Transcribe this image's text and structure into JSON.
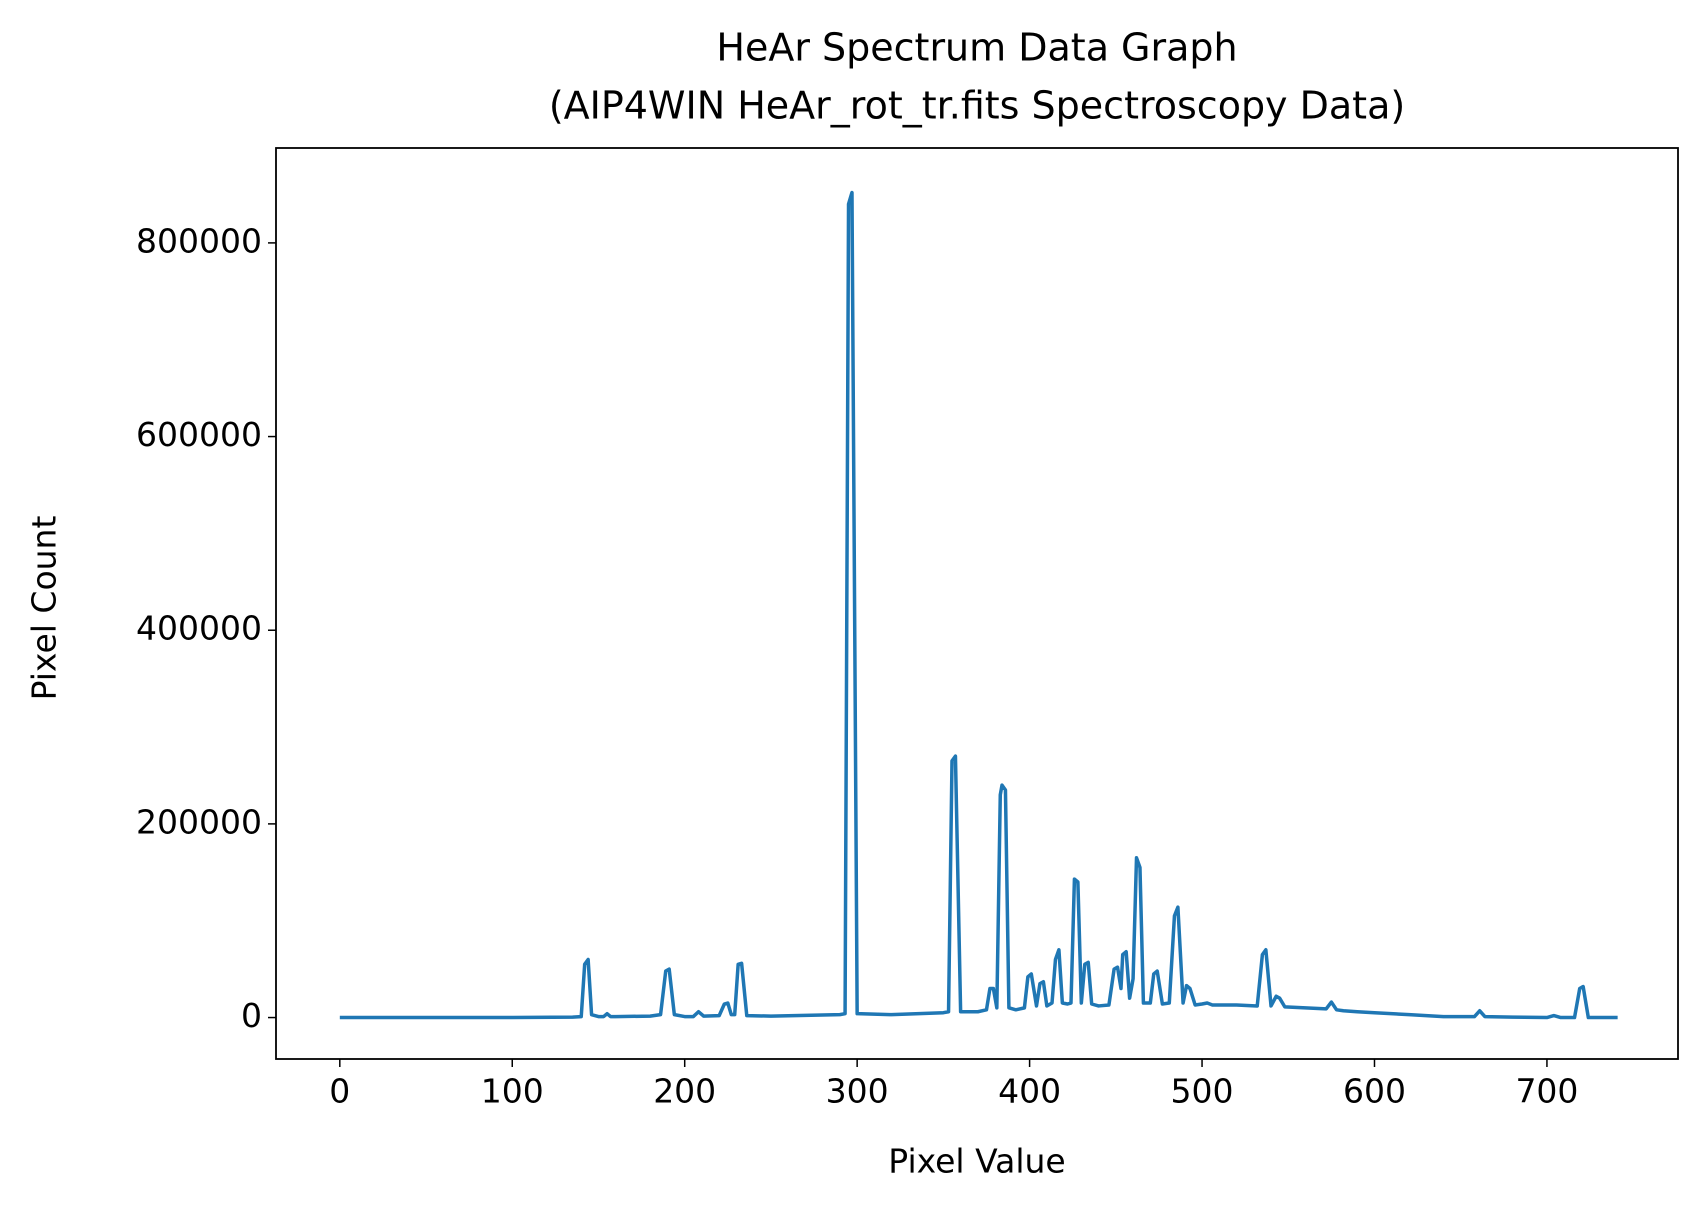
{
  "chart_data": {
    "type": "line",
    "title": "HeAr Spectrum Data Graph",
    "subtitle": "(AIP4WIN HeAr_rot_tr.fits Spectroscopy Data)",
    "x_label": "Pixel Value",
    "y_label": "Pixel Count",
    "xlim": [
      -37,
      776
    ],
    "ylim": [
      -42800,
      898000
    ],
    "xticks": [
      0,
      100,
      200,
      300,
      400,
      500,
      600,
      700
    ],
    "yticks": [
      0,
      200000,
      400000,
      600000,
      800000
    ],
    "grid": false,
    "series": [
      {
        "color": "#1f77b4",
        "x": [
          0,
          50,
          100,
          135,
          140,
          142,
          144,
          146,
          150,
          153,
          155,
          157,
          160,
          180,
          186,
          189,
          191,
          194,
          200,
          205,
          208,
          211,
          220,
          223,
          225,
          227,
          229,
          231,
          233,
          236,
          250,
          290,
          293,
          295,
          297,
          300,
          320,
          350,
          353,
          355,
          357,
          360,
          370,
          375,
          377,
          379,
          381,
          383,
          384,
          386,
          388,
          392,
          397,
          399,
          401,
          404,
          406,
          408,
          410,
          413,
          415,
          417,
          419,
          422,
          424,
          426,
          428,
          430,
          432,
          434,
          436,
          440,
          446,
          449,
          451,
          453,
          454,
          456,
          458,
          460,
          462,
          464,
          466,
          470,
          472,
          474,
          477,
          481,
          484,
          486,
          489,
          491,
          493,
          496,
          500,
          503,
          506,
          520,
          532,
          535,
          537,
          540,
          543,
          545,
          548,
          560,
          572,
          575,
          578,
          582,
          590,
          600,
          620,
          640,
          658,
          661,
          664,
          680,
          700,
          704,
          708,
          716,
          719,
          721,
          724,
          741
        ],
        "values": [
          0,
          0,
          0,
          500,
          1000,
          55000,
          60000,
          3000,
          1000,
          1000,
          4000,
          1000,
          1000,
          1500,
          3000,
          48000,
          50000,
          3000,
          1000,
          1000,
          6000,
          1500,
          2000,
          14000,
          15000,
          3000,
          3000,
          55000,
          56000,
          2000,
          1500,
          3000,
          4000,
          840000,
          852000,
          4000,
          3000,
          5000,
          6000,
          265000,
          270000,
          6000,
          6000,
          8000,
          30000,
          30000,
          10000,
          230000,
          240000,
          235000,
          10000,
          8000,
          10000,
          42000,
          45000,
          12000,
          35000,
          37000,
          12000,
          15000,
          60000,
          70000,
          15000,
          14000,
          15000,
          143000,
          140000,
          15000,
          55000,
          57000,
          14000,
          12000,
          13000,
          50000,
          52000,
          30000,
          65000,
          68000,
          20000,
          40000,
          165000,
          155000,
          15000,
          15000,
          45000,
          48000,
          14000,
          15000,
          105000,
          114000,
          15000,
          33000,
          30000,
          13000,
          14000,
          15000,
          13000,
          13000,
          12000,
          65000,
          70000,
          12000,
          22000,
          20000,
          11000,
          10000,
          9000,
          16000,
          8000,
          7000,
          6000,
          5000,
          3000,
          1000,
          1000,
          7000,
          1000,
          500,
          0,
          2000,
          0,
          0,
          30000,
          32000,
          0,
          0
        ]
      }
    ]
  }
}
